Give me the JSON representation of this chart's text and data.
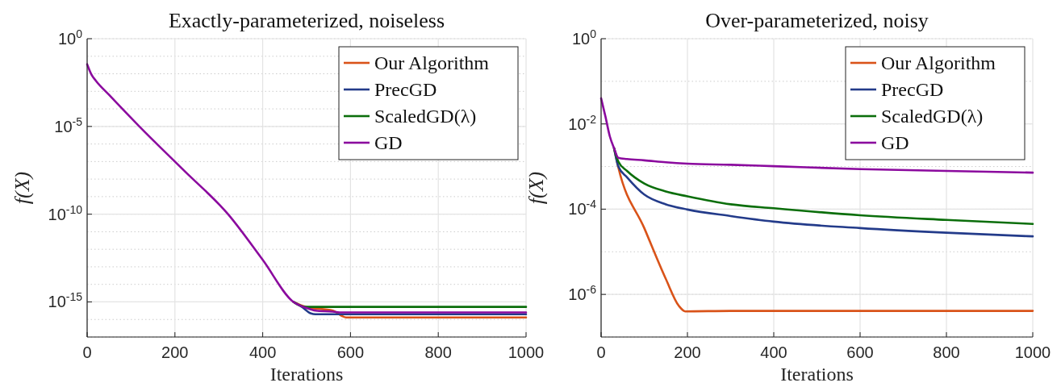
{
  "chart_data": [
    {
      "type": "line",
      "title": "Exactly-parameterized, noiseless",
      "xlabel": "Iterations",
      "ylabel": "f(X)",
      "log": "y",
      "grid": true,
      "legend": "top right",
      "xlim": [
        0,
        1000
      ],
      "xticks": [
        0,
        200,
        400,
        600,
        800,
        1000
      ],
      "ylim": [
        1e-17,
        1
      ],
      "yticks": [
        {
          "value": 1,
          "label": "10$^{0}$"
        },
        {
          "value": 1e-05,
          "label": "10$^{-5}$"
        },
        {
          "value": 1e-10,
          "label": "10$^{-10}$"
        },
        {
          "value": 1e-15,
          "label": "10$^{-15}$"
        }
      ],
      "series": [
        {
          "name": "Our Algorithm",
          "color": "#d95319",
          "x": [
            470,
            500,
            560,
            580,
            590,
            1000
          ],
          "values": [
            1e-15,
            5e-16,
            3.2e-16,
            1.6e-16,
            1.3e-16,
            1.3e-16
          ]
        },
        {
          "name": "PrecGD",
          "color": "#233b8a",
          "x": [
            470,
            490,
            510,
            520,
            1000
          ],
          "values": [
            1e-15,
            5e-16,
            2.2e-16,
            2e-16,
            2e-16
          ]
        },
        {
          "name": "ScaledGD(λ)",
          "color": "#0b6e0b",
          "x": [
            470,
            480,
            500,
            1000
          ],
          "values": [
            1e-15,
            7e-16,
            5.2e-16,
            5.2e-16
          ]
        },
        {
          "name": "GD",
          "color": "#8b0a9e",
          "x": [
            0,
            10,
            20,
            50,
            119,
            220,
            321,
            400,
            470,
            500,
            520,
            560,
            580,
            1000
          ],
          "values": [
            0.035,
            0.0089,
            0.004,
            0.00063,
            1e-05,
            3.2e-08,
            1e-10,
            2.5e-13,
            1e-15,
            4.5e-16,
            3.2e-16,
            2.8e-16,
            2.5e-16,
            2.5e-16
          ]
        }
      ]
    },
    {
      "type": "line",
      "title": "Over-parameterized, noisy",
      "xlabel": "Iterations",
      "ylabel": "f(X)",
      "log": "y",
      "grid": true,
      "legend": "top right",
      "xlim": [
        0,
        1000
      ],
      "xticks": [
        0,
        200,
        400,
        600,
        800,
        1000
      ],
      "ylim": [
        1e-07,
        1
      ],
      "yticks": [
        {
          "value": 1,
          "label": "10$^{0}$"
        },
        {
          "value": 0.01,
          "label": "10$^{-2}$"
        },
        {
          "value": 0.0001,
          "label": "10$^{-4}$"
        },
        {
          "value": 1e-06,
          "label": "10$^{-6}$"
        }
      ],
      "series": [
        {
          "name": "Our Algorithm",
          "color": "#d95319",
          "x": [
            30,
            40,
            100,
            150,
            180,
            195,
            300,
            1000
          ],
          "values": [
            0.0027,
            0.00095,
            3.6e-05,
            2.3e-06,
            5.4e-07,
            4e-07,
            4.1e-07,
            4.1e-07
          ]
        },
        {
          "name": "PrecGD",
          "color": "#233b8a",
          "x": [
            30,
            40,
            60,
            100,
            150,
            200,
            300,
            400,
            600,
            800,
            1000
          ],
          "values": [
            0.0027,
            0.001,
            0.00056,
            0.00022,
            0.00013,
            9.8e-05,
            6.9e-05,
            5.1e-05,
            3.6e-05,
            2.8e-05,
            2.3e-05
          ]
        },
        {
          "name": "ScaledGD(λ)",
          "color": "#0b6e0b",
          "x": [
            30,
            40,
            60,
            100,
            150,
            200,
            300,
            400,
            600,
            800,
            1000
          ],
          "values": [
            0.0027,
            0.0013,
            0.00079,
            0.0004,
            0.00026,
            0.0002,
            0.00013,
            0.000105,
            7.2e-05,
            5.6e-05,
            4.5e-05
          ]
        },
        {
          "name": "GD",
          "color": "#8b0a9e",
          "x": [
            0,
            10,
            20,
            30,
            40,
            60,
            100,
            150,
            200,
            300,
            400,
            600,
            800,
            1000
          ],
          "values": [
            0.04,
            0.015,
            0.0052,
            0.0027,
            0.0016,
            0.0015,
            0.0014,
            0.00126,
            0.00117,
            0.0011,
            0.00102,
            0.00087,
            0.00079,
            0.00072
          ]
        }
      ]
    }
  ]
}
